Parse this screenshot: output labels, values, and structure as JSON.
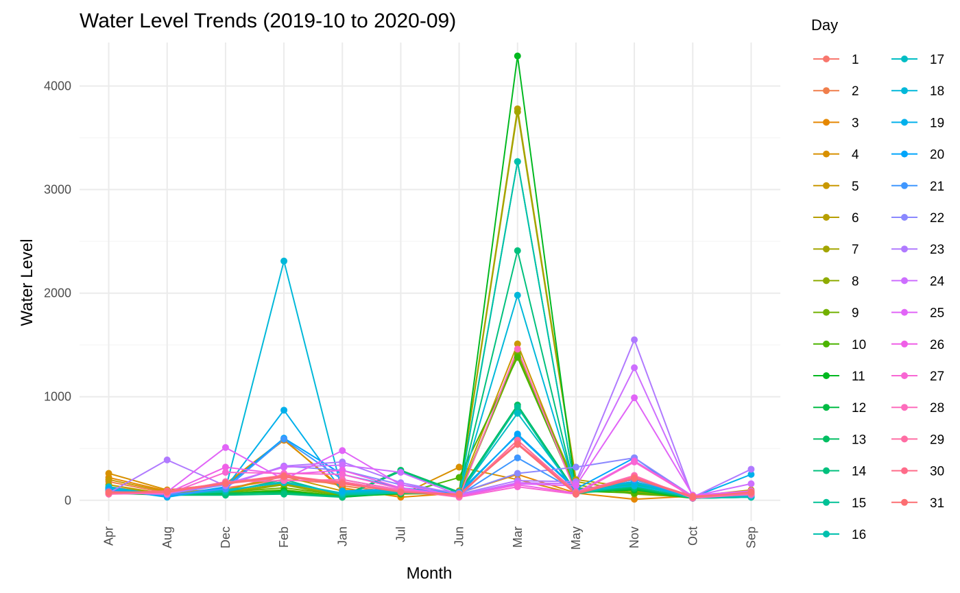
{
  "chart_data": {
    "type": "line",
    "title": "Water Level Trends (2019-10 to 2020-09)",
    "xlabel": "Month",
    "ylabel": "Water Level",
    "legend_title": "Day",
    "legend_position": "right",
    "grid": true,
    "categories": [
      "Apr",
      "Aug",
      "Dec",
      "Feb",
      "Jan",
      "Jul",
      "Jun",
      "Mar",
      "May",
      "Nov",
      "Oct",
      "Sep"
    ],
    "ylim": [
      -200,
      4420
    ],
    "yticks": [
      0,
      1000,
      2000,
      3000,
      4000
    ],
    "series": [
      {
        "name": "1",
        "color": "#F8766D",
        "values": [
          130,
          60,
          120,
          200,
          160,
          90,
          60,
          550,
          90,
          200,
          40,
          70
        ]
      },
      {
        "name": "2",
        "color": "#F07E4B",
        "values": [
          180,
          70,
          100,
          250,
          140,
          70,
          50,
          580,
          80,
          180,
          30,
          60
        ]
      },
      {
        "name": "3",
        "color": "#E58700",
        "values": [
          220,
          90,
          150,
          580,
          120,
          30,
          70,
          250,
          70,
          10,
          40,
          50
        ]
      },
      {
        "name": "4",
        "color": "#D89000",
        "values": [
          260,
          100,
          160,
          590,
          100,
          50,
          320,
          200,
          60,
          220,
          30,
          80
        ]
      },
      {
        "name": "5",
        "color": "#C99800",
        "values": [
          200,
          80,
          100,
          230,
          90,
          60,
          90,
          1510,
          100,
          180,
          40,
          100
        ]
      },
      {
        "name": "6",
        "color": "#B79F00",
        "values": [
          150,
          60,
          90,
          180,
          60,
          70,
          80,
          3780,
          200,
          120,
          30,
          80
        ]
      },
      {
        "name": "7",
        "color": "#A3A500",
        "values": [
          120,
          70,
          80,
          160,
          50,
          60,
          70,
          3750,
          180,
          90,
          20,
          70
        ]
      },
      {
        "name": "8",
        "color": "#8EAB00",
        "values": [
          100,
          60,
          70,
          150,
          40,
          80,
          60,
          1420,
          150,
          60,
          30,
          60
        ]
      },
      {
        "name": "9",
        "color": "#72B000",
        "values": [
          90,
          70,
          80,
          120,
          50,
          90,
          50,
          1400,
          120,
          80,
          20,
          50
        ]
      },
      {
        "name": "10",
        "color": "#4BB400",
        "values": [
          110,
          50,
          70,
          100,
          40,
          60,
          220,
          1380,
          90,
          70,
          30,
          40
        ]
      },
      {
        "name": "11",
        "color": "#00B81F",
        "values": [
          80,
          60,
          60,
          90,
          30,
          70,
          60,
          4290,
          80,
          100,
          20,
          30
        ]
      },
      {
        "name": "12",
        "color": "#00BB44",
        "values": [
          70,
          50,
          60,
          80,
          30,
          80,
          60,
          3270,
          70,
          110,
          20,
          40
        ]
      },
      {
        "name": "13",
        "color": "#00BE62",
        "values": [
          90,
          60,
          70,
          70,
          40,
          290,
          80,
          920,
          80,
          120,
          30,
          50
        ]
      },
      {
        "name": "14",
        "color": "#00C07D",
        "values": [
          100,
          50,
          50,
          60,
          30,
          280,
          70,
          2410,
          70,
          130,
          20,
          30
        ]
      },
      {
        "name": "15",
        "color": "#00C196",
        "values": [
          110,
          60,
          80,
          200,
          50,
          70,
          60,
          900,
          60,
          150,
          30,
          40
        ]
      },
      {
        "name": "16",
        "color": "#00C0AE",
        "values": [
          120,
          50,
          90,
          180,
          60,
          80,
          50,
          3270,
          70,
          160,
          20,
          30
        ]
      },
      {
        "name": "17",
        "color": "#00BDC4",
        "values": [
          130,
          40,
          100,
          170,
          70,
          90,
          60,
          840,
          80,
          170,
          30,
          40
        ]
      },
      {
        "name": "18",
        "color": "#00B8D9",
        "values": [
          120,
          50,
          110,
          2310,
          80,
          100,
          70,
          1980,
          90,
          140,
          40,
          60
        ]
      },
      {
        "name": "19",
        "color": "#00B0EB",
        "values": [
          110,
          30,
          120,
          870,
          90,
          110,
          80,
          630,
          100,
          180,
          30,
          250
        ]
      },
      {
        "name": "20",
        "color": "#00A5FB",
        "values": [
          100,
          40,
          130,
          600,
          250,
          120,
          60,
          640,
          110,
          410,
          20,
          70
        ]
      },
      {
        "name": "21",
        "color": "#3F97FF",
        "values": [
          90,
          50,
          110,
          590,
          200,
          100,
          50,
          410,
          90,
          200,
          30,
          60
        ]
      },
      {
        "name": "22",
        "color": "#8A88FF",
        "values": [
          80,
          60,
          150,
          330,
          290,
          150,
          70,
          260,
          320,
          410,
          40,
          50
        ]
      },
      {
        "name": "23",
        "color": "#B07AFF",
        "values": [
          70,
          390,
          140,
          330,
          370,
          170,
          60,
          190,
          180,
          1550,
          30,
          300
        ]
      },
      {
        "name": "24",
        "color": "#CD6EFF",
        "values": [
          60,
          70,
          160,
          320,
          340,
          270,
          50,
          170,
          160,
          1280,
          40,
          160
        ]
      },
      {
        "name": "25",
        "color": "#E164F7",
        "values": [
          70,
          80,
          510,
          200,
          480,
          150,
          40,
          160,
          140,
          990,
          50,
          90
        ]
      },
      {
        "name": "26",
        "color": "#EF5FE7",
        "values": [
          80,
          70,
          320,
          250,
          290,
          120,
          40,
          150,
          70,
          380,
          40,
          80
        ]
      },
      {
        "name": "27",
        "color": "#F866D3",
        "values": [
          70,
          60,
          270,
          260,
          250,
          110,
          30,
          130,
          60,
          370,
          30,
          70
        ]
      },
      {
        "name": "28",
        "color": "#FD6CBC",
        "values": [
          80,
          70,
          180,
          190,
          200,
          100,
          30,
          1460,
          70,
          240,
          20,
          60
        ]
      },
      {
        "name": "29",
        "color": "#FF6DA3",
        "values": [
          60,
          80,
          160,
          220,
          180,
          90,
          40,
          580,
          80,
          230,
          30,
          60
        ]
      },
      {
        "name": "30",
        "color": "#FF6B89",
        "values": [
          70,
          90,
          170,
          240,
          170,
          80,
          50,
          550,
          70,
          220,
          40,
          70
        ]
      },
      {
        "name": "31",
        "color": "#FC6E72",
        "values": [
          80,
          80,
          160,
          230,
          160,
          80,
          60,
          540,
          60,
          210,
          30,
          80
        ]
      }
    ]
  }
}
